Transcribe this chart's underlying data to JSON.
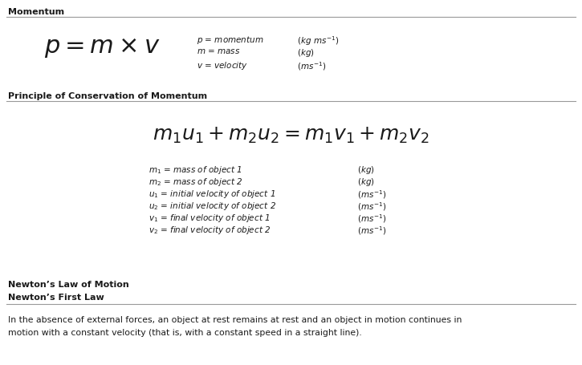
{
  "bg_color": "#ffffff",
  "text_color": "#1a1a1a",
  "line_color": "#999999",
  "section1_heading": "Momentum",
  "section1_formula_latex": "$p = m \\times v$",
  "section1_vars_desc": [
    "$p$ = momentum",
    "$m$ = mass",
    "$v$ = velocity"
  ],
  "section1_vars_units": [
    "$(kg\\ ms^{-1})$",
    "$(kg)$",
    "$(ms^{-1})$"
  ],
  "section2_heading": "Principle of Conservation of Momentum",
  "section2_formula_latex": "$m_1u_1 + m_2u_2 = m_1v_1 + m_2v_2$",
  "section2_vars_desc": [
    "$m_1$ = mass of object 1",
    "$m_2$ = mass of object 2",
    "$u_1$ = initial velocity of object 1",
    "$u_2$ = initial velocity of object 2",
    "$v_1$ = final velocity of object 1",
    "$v_2$ = final velocity of object 2"
  ],
  "section2_vars_units": [
    "$(kg)$",
    "$(kg)$",
    "$(ms^{-1})$",
    "$(ms^{-1})$",
    "$(ms^{-1})$",
    "$(ms^{-1})$"
  ],
  "section3_heading1": "Newton’s Law of Motion",
  "section3_heading2": "Newton’s First Law",
  "section3_line1": "In the absence of external forces, an object at rest remains at rest and an object in motion continues in",
  "section3_line2": "motion with a constant velocity (that is, with a constant speed in a straight line).",
  "figsize": [
    7.25,
    4.56
  ],
  "dpi": 100
}
